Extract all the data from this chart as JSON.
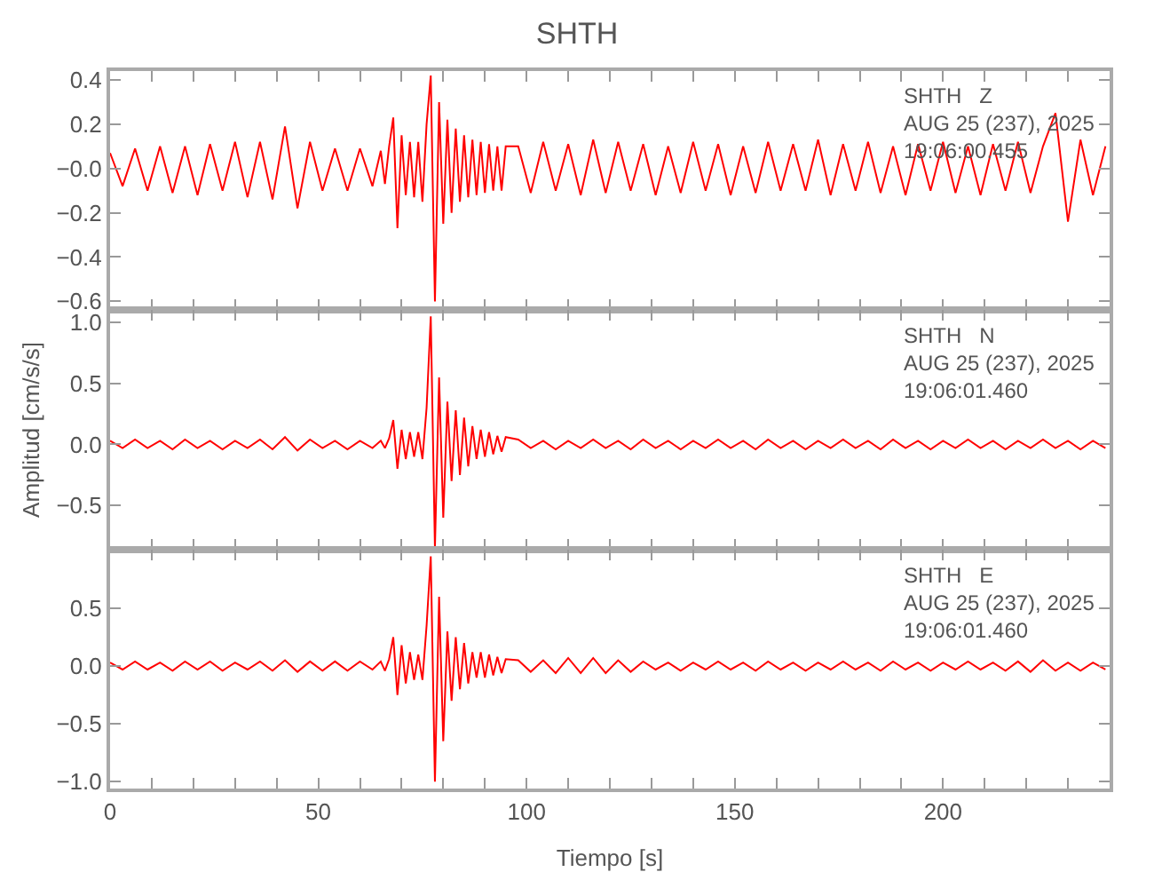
{
  "chart_data": [
    {
      "type": "line",
      "title": "SHTH",
      "annotations": [
        "SHTH   Z\nAUG 25 (237), 2025\n19:06:00.455"
      ],
      "tick_labels": "y",
      "line_style": "solid",
      "marker": "none",
      "x": [
        0,
        3,
        6,
        9,
        12,
        15,
        18,
        21,
        24,
        27,
        30,
        33,
        36,
        39,
        42,
        45,
        48,
        51,
        54,
        57,
        60,
        63,
        65,
        66,
        67,
        68,
        69,
        70,
        71,
        72,
        73,
        74,
        75,
        76,
        77,
        78,
        79,
        80,
        81,
        82,
        83,
        84,
        85,
        86,
        87,
        88,
        89,
        90,
        91,
        92,
        93,
        94,
        95,
        98,
        101,
        104,
        107,
        110,
        113,
        116,
        119,
        122,
        125,
        128,
        131,
        134,
        137,
        140,
        143,
        146,
        149,
        152,
        155,
        158,
        161,
        164,
        167,
        170,
        173,
        176,
        179,
        182,
        185,
        188,
        191,
        194,
        197,
        200,
        203,
        206,
        209,
        212,
        215,
        218,
        221,
        224,
        227,
        230,
        233,
        236,
        239
      ],
      "series": [
        {
          "color": "#ff0000",
          "values": [
            0.07,
            -0.08,
            0.09,
            -0.1,
            0.1,
            -0.11,
            0.1,
            -0.12,
            0.11,
            -0.1,
            0.12,
            -0.13,
            0.12,
            -0.14,
            0.19,
            -0.18,
            0.12,
            -0.1,
            0.09,
            -0.1,
            0.09,
            -0.08,
            0.08,
            -0.07,
            0.1,
            0.23,
            -0.27,
            0.15,
            -0.12,
            0.12,
            -0.13,
            0.12,
            -0.15,
            0.2,
            0.42,
            -0.6,
            0.3,
            -0.25,
            0.22,
            -0.2,
            0.18,
            -0.15,
            0.15,
            -0.13,
            0.13,
            -0.12,
            0.12,
            -0.11,
            0.11,
            -0.1,
            0.1,
            -0.1,
            0.1,
            0.1,
            -0.11,
            0.12,
            -0.1,
            0.11,
            -0.12,
            0.13,
            -0.11,
            0.12,
            -0.1,
            0.11,
            -0.12,
            0.1,
            -0.11,
            0.12,
            -0.1,
            0.11,
            -0.12,
            0.1,
            -0.11,
            0.12,
            -0.1,
            0.11,
            -0.1,
            0.13,
            -0.12,
            0.11,
            -0.1,
            0.12,
            -0.11,
            0.1,
            -0.12,
            0.11,
            -0.1,
            0.12,
            -0.11,
            0.1,
            -0.12,
            0.11,
            -0.1,
            0.12,
            -0.11,
            0.1,
            0.25,
            -0.24,
            0.13,
            -0.12,
            0.1
          ]
        }
      ],
      "xlim": [
        0,
        240
      ],
      "xticks": [
        0,
        {
          "value": 10,
          "label": null
        },
        {
          "value": 20,
          "label": null
        },
        {
          "value": 30,
          "label": null
        },
        {
          "value": 40,
          "label": null
        },
        50,
        {
          "value": 60,
          "label": null
        },
        {
          "value": 70,
          "label": null
        },
        {
          "value": 80,
          "label": null
        },
        {
          "value": 90,
          "label": null
        },
        100,
        {
          "value": 110,
          "label": null
        },
        {
          "value": 120,
          "label": null
        },
        {
          "value": 130,
          "label": null
        },
        {
          "value": 140,
          "label": null
        },
        150,
        {
          "value": 160,
          "label": null
        },
        {
          "value": 170,
          "label": null
        },
        {
          "value": 180,
          "label": null
        },
        {
          "value": 190,
          "label": null
        },
        200,
        {
          "value": 210,
          "label": null
        },
        {
          "value": 220,
          "label": null
        },
        {
          "value": 230,
          "label": null
        },
        {
          "value": 240,
          "label": null
        }
      ],
      "ylim": [
        -0.64,
        0.44
      ],
      "yticks": [
        {
          "value": -0.6,
          "label": "−0.6"
        },
        {
          "value": -0.4,
          "label": "−0.4"
        },
        {
          "value": -0.2,
          "label": "−0.2"
        },
        {
          "value": 0,
          "label": "−0.0"
        },
        0.2,
        0.4
      ]
    },
    {
      "type": "line",
      "ylabel": "Amplitud [cm/s/s]",
      "annotations": [
        "SHTH   N\nAUG 25 (237), 2025\n19:06:01.460"
      ],
      "tick_labels": "y",
      "line_style": "solid",
      "marker": "none",
      "x": [
        0,
        3,
        6,
        9,
        12,
        15,
        18,
        21,
        24,
        27,
        30,
        33,
        36,
        39,
        42,
        45,
        48,
        51,
        54,
        57,
        60,
        63,
        65,
        66,
        67,
        68,
        69,
        70,
        71,
        72,
        73,
        74,
        75,
        76,
        77,
        78,
        79,
        80,
        81,
        82,
        83,
        84,
        85,
        86,
        87,
        88,
        89,
        90,
        91,
        92,
        93,
        94,
        95,
        98,
        101,
        104,
        107,
        110,
        113,
        116,
        119,
        122,
        125,
        128,
        131,
        134,
        137,
        140,
        143,
        146,
        149,
        152,
        155,
        158,
        161,
        164,
        167,
        170,
        173,
        176,
        179,
        182,
        185,
        188,
        191,
        194,
        197,
        200,
        203,
        206,
        209,
        212,
        215,
        218,
        221,
        224,
        227,
        230,
        233,
        236,
        239
      ],
      "series": [
        {
          "color": "#ff0000",
          "values": [
            0.03,
            -0.03,
            0.04,
            -0.03,
            0.03,
            -0.04,
            0.04,
            -0.03,
            0.03,
            -0.04,
            0.03,
            -0.03,
            0.04,
            -0.04,
            0.06,
            -0.05,
            0.04,
            -0.03,
            0.03,
            -0.04,
            0.03,
            -0.03,
            0.03,
            -0.03,
            0.05,
            0.2,
            -0.2,
            0.12,
            -0.12,
            0.1,
            -0.1,
            0.1,
            -0.12,
            0.3,
            1.05,
            -0.85,
            0.55,
            -0.6,
            0.35,
            -0.3,
            0.28,
            -0.25,
            0.22,
            -0.18,
            0.15,
            -0.12,
            0.12,
            -0.1,
            0.1,
            -0.08,
            0.07,
            -0.06,
            0.06,
            0.04,
            -0.03,
            0.03,
            -0.04,
            0.03,
            -0.03,
            0.04,
            -0.03,
            0.03,
            -0.04,
            0.04,
            -0.03,
            0.03,
            -0.04,
            0.03,
            -0.03,
            0.04,
            -0.03,
            0.03,
            -0.04,
            0.04,
            -0.03,
            0.03,
            -0.04,
            0.03,
            -0.03,
            0.04,
            -0.03,
            0.03,
            -0.04,
            0.04,
            -0.03,
            0.03,
            -0.04,
            0.03,
            -0.03,
            0.04,
            -0.03,
            0.03,
            -0.04,
            0.03,
            -0.03,
            0.04,
            -0.03,
            0.03,
            -0.04,
            0.03,
            -0.03
          ]
        }
      ],
      "xlim": [
        0,
        240
      ],
      "xticks": [
        0,
        {
          "value": 10,
          "label": null
        },
        {
          "value": 20,
          "label": null
        },
        {
          "value": 30,
          "label": null
        },
        {
          "value": 40,
          "label": null
        },
        50,
        {
          "value": 60,
          "label": null
        },
        {
          "value": 70,
          "label": null
        },
        {
          "value": 80,
          "label": null
        },
        {
          "value": 90,
          "label": null
        },
        100,
        {
          "value": 110,
          "label": null
        },
        {
          "value": 120,
          "label": null
        },
        {
          "value": 130,
          "label": null
        },
        {
          "value": 140,
          "label": null
        },
        150,
        {
          "value": 160,
          "label": null
        },
        {
          "value": 170,
          "label": null
        },
        {
          "value": 180,
          "label": null
        },
        {
          "value": 190,
          "label": null
        },
        200,
        {
          "value": 210,
          "label": null
        },
        {
          "value": 220,
          "label": null
        },
        {
          "value": 230,
          "label": null
        },
        {
          "value": 240,
          "label": null
        }
      ],
      "ylim": [
        -0.86,
        1.1
      ],
      "yticks": [
        {
          "value": -0.5,
          "label": "−0.5"
        },
        {
          "value": 0,
          "label": "0.0"
        },
        0.5,
        {
          "value": 1,
          "label": "1.0"
        }
      ]
    },
    {
      "type": "line",
      "xlabel": "Tiempo [s]",
      "annotations": [
        "SHTH   E\nAUG 25 (237), 2025\n19:06:01.460"
      ],
      "line_style": "solid",
      "marker": "none",
      "x": [
        0,
        3,
        6,
        9,
        12,
        15,
        18,
        21,
        24,
        27,
        30,
        33,
        36,
        39,
        42,
        45,
        48,
        51,
        54,
        57,
        60,
        63,
        65,
        66,
        67,
        68,
        69,
        70,
        71,
        72,
        73,
        74,
        75,
        76,
        77,
        78,
        79,
        80,
        81,
        82,
        83,
        84,
        85,
        86,
        87,
        88,
        89,
        90,
        91,
        92,
        93,
        94,
        95,
        98,
        101,
        104,
        107,
        110,
        113,
        116,
        119,
        122,
        125,
        128,
        131,
        134,
        137,
        140,
        143,
        146,
        149,
        152,
        155,
        158,
        161,
        164,
        167,
        170,
        173,
        176,
        179,
        182,
        185,
        188,
        191,
        194,
        197,
        200,
        203,
        206,
        209,
        212,
        215,
        218,
        221,
        224,
        227,
        230,
        233,
        236,
        239
      ],
      "series": [
        {
          "color": "#ff0000",
          "values": [
            0.03,
            -0.03,
            0.04,
            -0.03,
            0.03,
            -0.04,
            0.04,
            -0.03,
            0.04,
            -0.04,
            0.03,
            -0.03,
            0.04,
            -0.04,
            0.05,
            -0.05,
            0.04,
            -0.04,
            0.04,
            -0.04,
            0.04,
            -0.03,
            0.04,
            -0.04,
            0.06,
            0.25,
            -0.25,
            0.18,
            -0.15,
            0.12,
            -0.12,
            0.1,
            -0.12,
            0.35,
            0.95,
            -1.0,
            0.6,
            -0.65,
            0.3,
            -0.3,
            0.25,
            -0.2,
            0.2,
            -0.15,
            0.12,
            -0.1,
            0.12,
            -0.1,
            0.1,
            -0.08,
            0.08,
            -0.06,
            0.06,
            0.05,
            -0.05,
            0.05,
            -0.06,
            0.07,
            -0.06,
            0.07,
            -0.06,
            0.05,
            -0.05,
            0.04,
            -0.03,
            0.03,
            -0.04,
            0.03,
            -0.03,
            0.04,
            -0.03,
            0.03,
            -0.04,
            0.04,
            -0.03,
            0.03,
            -0.04,
            0.03,
            -0.03,
            0.04,
            -0.03,
            0.03,
            -0.04,
            0.04,
            -0.03,
            0.03,
            -0.04,
            0.03,
            -0.03,
            0.04,
            -0.03,
            0.03,
            -0.04,
            0.04,
            -0.05,
            0.05,
            -0.04,
            0.03,
            -0.04,
            0.03,
            -0.03
          ]
        }
      ],
      "xlim": [
        0,
        240
      ],
      "xticks": [
        0,
        {
          "value": 10,
          "label": null
        },
        {
          "value": 20,
          "label": null
        },
        {
          "value": 30,
          "label": null
        },
        {
          "value": 40,
          "label": null
        },
        50,
        {
          "value": 60,
          "label": null
        },
        {
          "value": 70,
          "label": null
        },
        {
          "value": 80,
          "label": null
        },
        {
          "value": 90,
          "label": null
        },
        100,
        {
          "value": 110,
          "label": null
        },
        {
          "value": 120,
          "label": null
        },
        {
          "value": 130,
          "label": null
        },
        {
          "value": 140,
          "label": null
        },
        150,
        {
          "value": 160,
          "label": null
        },
        {
          "value": 170,
          "label": null
        },
        {
          "value": 180,
          "label": null
        },
        {
          "value": 190,
          "label": null
        },
        200,
        {
          "value": 210,
          "label": null
        },
        {
          "value": 220,
          "label": null
        },
        {
          "value": 230,
          "label": null
        },
        {
          "value": 240,
          "label": null
        }
      ],
      "ylim": [
        -1.06,
        1.01
      ],
      "yticks": [
        {
          "value": -1,
          "label": "−1.0"
        },
        {
          "value": -0.5,
          "label": "−0.5"
        },
        {
          "value": 0,
          "label": "0.0"
        },
        0.5
      ]
    }
  ]
}
